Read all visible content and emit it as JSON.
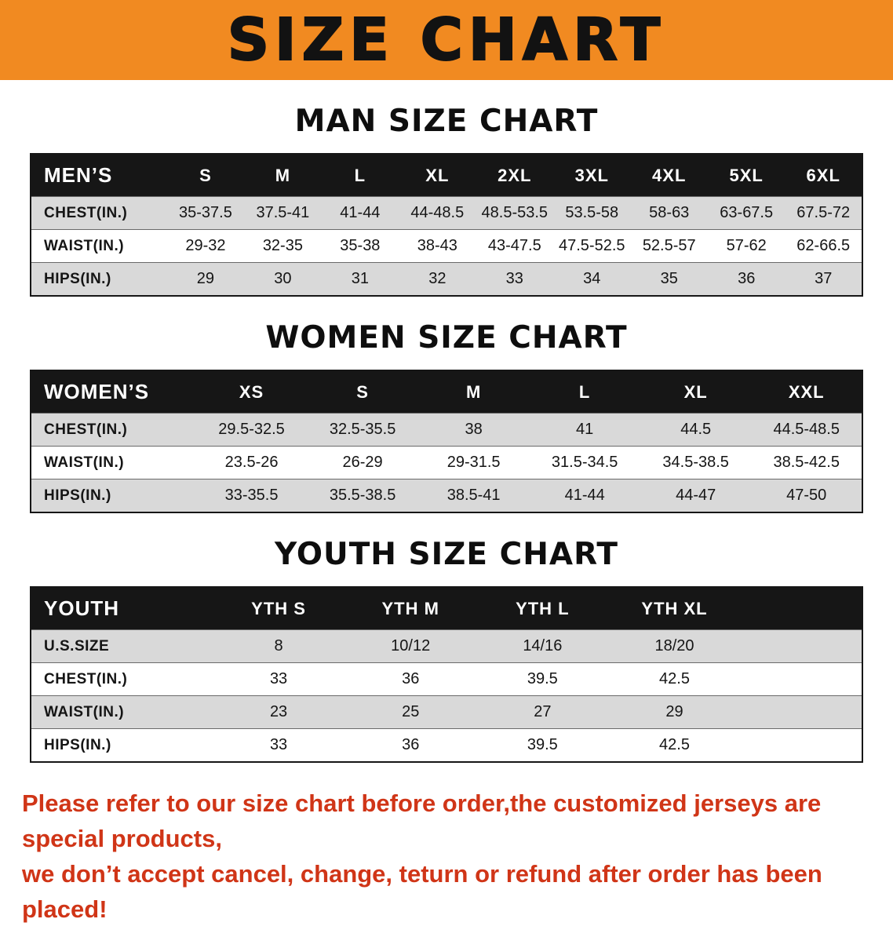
{
  "banner": {
    "title": "SIZE CHART",
    "bg_color": "#f18a21"
  },
  "colors": {
    "header_bar": "#161616",
    "row_alt": "#d9d9d9",
    "footer_text": "#d03517"
  },
  "sections": [
    {
      "heading": "MAN SIZE CHART",
      "filler_col": false,
      "table": {
        "header": [
          "MEN’S",
          "S",
          "M",
          "L",
          "XL",
          "2XL",
          "3XL",
          "4XL",
          "5XL",
          "6XL"
        ],
        "rows": [
          [
            "CHEST(IN.)",
            "35-37.5",
            "37.5-41",
            "41-44",
            "44-48.5",
            "48.5-53.5",
            "53.5-58",
            "58-63",
            "63-67.5",
            "67.5-72"
          ],
          [
            "WAIST(IN.)",
            "29-32",
            "32-35",
            "35-38",
            "38-43",
            "43-47.5",
            "47.5-52.5",
            "52.5-57",
            "57-62",
            "62-66.5"
          ],
          [
            "HIPS(IN.)",
            "29",
            "30",
            "31",
            "32",
            "33",
            "34",
            "35",
            "36",
            "37"
          ]
        ]
      }
    },
    {
      "heading": "WOMEN SIZE CHART",
      "filler_col": false,
      "table": {
        "header": [
          "WOMEN’S",
          "XS",
          "S",
          "M",
          "L",
          "XL",
          "XXL"
        ],
        "rows": [
          [
            "CHEST(IN.)",
            "29.5-32.5",
            "32.5-35.5",
            "38",
            "41",
            "44.5",
            "44.5-48.5"
          ],
          [
            "WAIST(IN.)",
            "23.5-26",
            "26-29",
            "29-31.5",
            "31.5-34.5",
            "34.5-38.5",
            "38.5-42.5"
          ],
          [
            "HIPS(IN.)",
            "33-35.5",
            "35.5-38.5",
            "38.5-41",
            "41-44",
            "44-47",
            "47-50"
          ]
        ]
      }
    },
    {
      "heading": "YOUTH SIZE CHART",
      "filler_col": true,
      "table": {
        "header": [
          "YOUTH",
          "YTH S",
          "YTH M",
          "YTH L",
          "YTH XL"
        ],
        "rows": [
          [
            "U.S.SIZE",
            "8",
            "10/12",
            "14/16",
            "18/20"
          ],
          [
            "CHEST(IN.)",
            "33",
            "36",
            "39.5",
            "42.5"
          ],
          [
            "WAIST(IN.)",
            "23",
            "25",
            "27",
            "29"
          ],
          [
            "HIPS(IN.)",
            "33",
            "36",
            "39.5",
            "42.5"
          ]
        ]
      }
    }
  ],
  "footer": {
    "line1": "Please refer to our size chart before order,the customized jerseys are special products,",
    "line2": "we don’t accept cancel, change, teturn or refund after order has been placed!"
  }
}
